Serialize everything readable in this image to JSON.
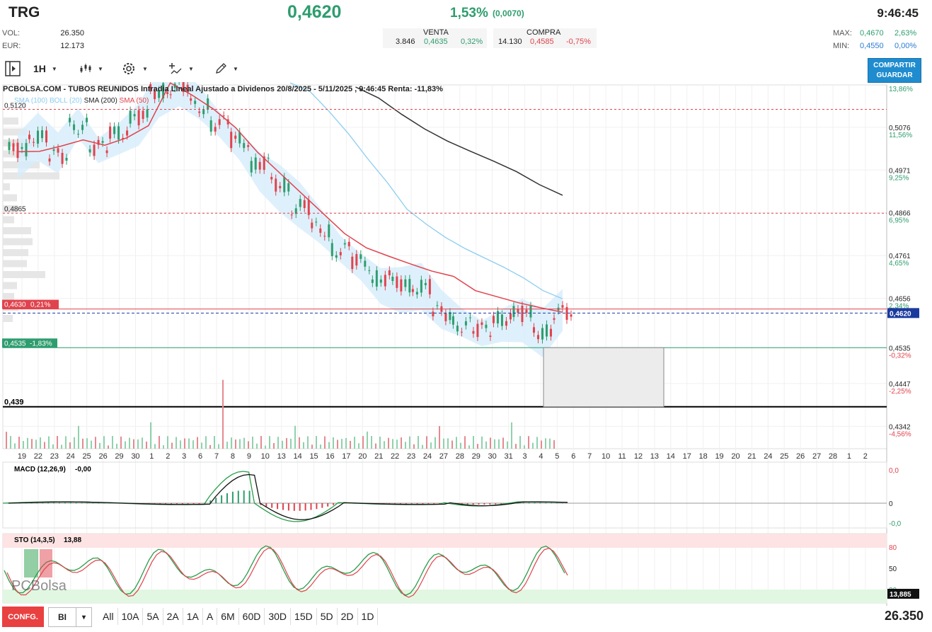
{
  "header": {
    "ticker": "TRG",
    "last": "0,4620",
    "change_pct": "1,53%",
    "change_abs": "(0,0070)",
    "time": "9:46:45",
    "vol_label": "VOL:",
    "vol_value": "26.350",
    "eur_label": "EUR:",
    "eur_value": "12.173",
    "venta_label": "VENTA",
    "venta_qty": "3.846",
    "venta_price": "0,4635",
    "venta_pct": "0,32%",
    "compra_label": "COMPRA",
    "compra_qty": "14.130",
    "compra_price": "0,4585",
    "compra_pct": "-0,75%",
    "max_label": "MAX:",
    "max_price": "0,4670",
    "max_pct": "2,63%",
    "min_label": "MIN:",
    "min_price": "0,4550",
    "min_pct": "0,00%"
  },
  "toolbar": {
    "interval": "1H",
    "share_line1": "COMPARTIR",
    "share_line2": "GUARDAR"
  },
  "chart": {
    "title": "PCBOLSA.COM - TUBOS REUNIDOS Intradia Lineal Ajustado a Dividenos 20/8/2025 - 5/11/2025 , 9:46:45 Renta: -11,83%",
    "legend_sma100": "SMA (100)",
    "legend_boll": "BOLL (20)",
    "legend_sma200": "SMA (200)",
    "legend_sma50": "SMA (50)",
    "hline_labels": {
      "top": "0,5120",
      "mid": "0,4865",
      "red": "0,4630",
      "red_pct": "0,21%",
      "green": "0,4535",
      "green_pct": "-1,83%",
      "black": "0,439"
    },
    "last_price_tag": "0,4620",
    "macd_label": "MACD (12,26,9)",
    "macd_value": "-0,00",
    "sto_label": "STO (14,3,5)",
    "sto_value": "13,88",
    "sto_tag": "13,885",
    "watermark": "PCBolsa"
  },
  "colors": {
    "green": "#2e9d6e",
    "red": "#e0434d",
    "sma50": "#e0434d",
    "sma100": "#8ccdf0",
    "sma200": "#333333",
    "boll_fill": "#d6ecfa",
    "accent": "#1f8ccf"
  },
  "chart_data": {
    "type": "line",
    "symbol": "TRG",
    "y_axis_right": [
      {
        "price": "0,5076",
        "pct": "11,56%"
      },
      {
        "price": "0,4971",
        "pct": "9,25%"
      },
      {
        "price": "0,4866",
        "pct": "6,95%"
      },
      {
        "price": "0,4761",
        "pct": "4,65%"
      },
      {
        "price": "0,4656",
        "pct": "2,34%"
      },
      {
        "price": "0,4535",
        "pct": "-0,32%"
      },
      {
        "price": "0,4447",
        "pct": "-2,25%"
      },
      {
        "price": "0,4342",
        "pct": "-4,56%"
      }
    ],
    "y_top_pct": "13,86%",
    "ylim": [
      0.4287,
      0.518
    ],
    "x_ticks": [
      "19",
      "22",
      "23",
      "24",
      "25",
      "26",
      "29",
      "30",
      "1",
      "2",
      "3",
      "6",
      "7",
      "8",
      "9",
      "10",
      "13",
      "14",
      "15",
      "16",
      "17",
      "20",
      "21",
      "22",
      "23",
      "24",
      "27",
      "28",
      "29",
      "30",
      "31",
      "3",
      "4",
      "5",
      "6",
      "7",
      "10",
      "11",
      "12",
      "13",
      "14",
      "17",
      "18",
      "19",
      "20",
      "21",
      "24",
      "25",
      "26",
      "27",
      "28",
      "1",
      "2"
    ],
    "price": [
      0.502,
      0.5055,
      0.5005,
      0.508,
      0.5025,
      0.5065,
      0.51,
      0.5165,
      0.5175,
      0.5128,
      0.5085,
      0.5045,
      0.4985,
      0.4935,
      0.488,
      0.4825,
      0.4775,
      0.4745,
      0.4705,
      0.469,
      0.4685,
      0.462,
      0.4592,
      0.4578,
      0.4608,
      0.4618,
      0.4575,
      0.462
    ],
    "sma50": [
      0.5016,
      0.5017,
      0.503,
      0.5045,
      0.5032,
      0.505,
      0.508,
      0.5185,
      0.5155,
      0.512,
      0.5075,
      0.5015,
      0.4965,
      0.4915,
      0.4865,
      0.4815,
      0.478,
      0.476,
      0.4741,
      0.4723,
      0.471,
      0.4675,
      0.466,
      0.4645,
      0.4633,
      0.4622
    ],
    "sma100": [
      0.5185,
      0.5165,
      0.5115,
      0.506,
      0.4998,
      0.494,
      0.4875,
      0.4838,
      0.4805,
      0.4778,
      0.4755,
      0.4732,
      0.4706,
      0.4675,
      0.4655
    ],
    "sma200": [
      0.5175,
      0.5148,
      0.5108,
      0.5072,
      0.5042,
      0.5017,
      0.4993,
      0.4967,
      0.4935,
      0.4909
    ],
    "macd": {
      "range": [
        "0,0",
        "0",
        "-0,0"
      ]
    },
    "sto": {
      "range": [
        "80",
        "50",
        "20"
      ]
    },
    "volume_total": "26.350"
  },
  "bottom": {
    "config": "CONFG.",
    "bi": "BI",
    "bi_caret": "▾",
    "periods": [
      "All",
      "10A",
      "5A",
      "2A",
      "1A",
      "A",
      "6M",
      "60D",
      "30D",
      "15D",
      "5D",
      "2D",
      "1D"
    ],
    "total_volume": "26.350"
  }
}
